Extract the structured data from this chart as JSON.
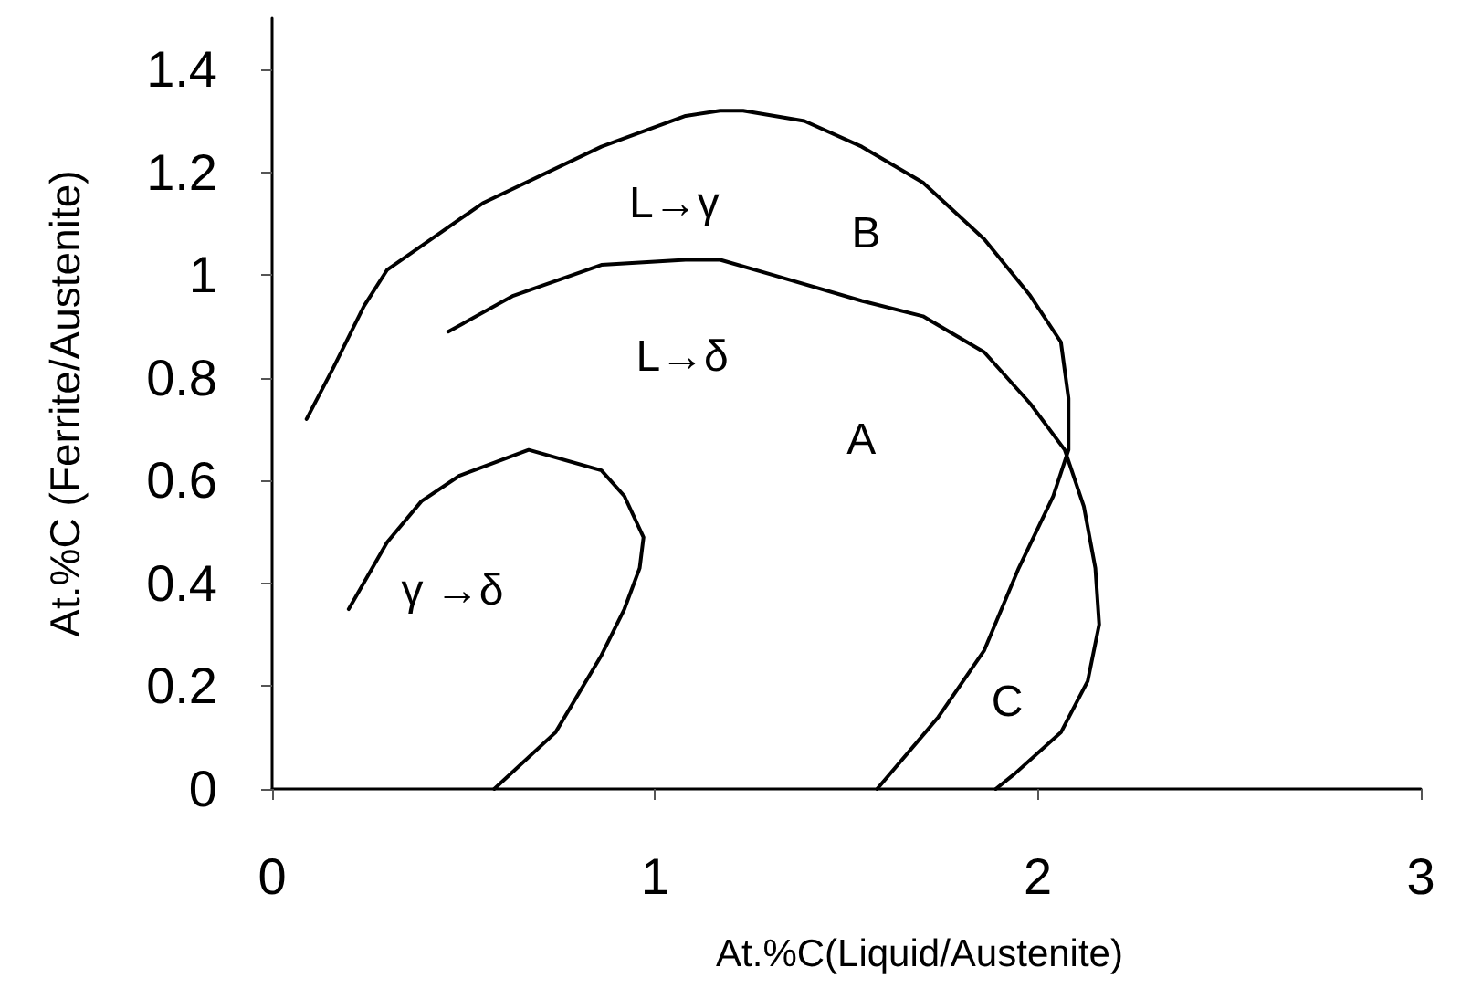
{
  "chart_data": {
    "type": "line",
    "xlabel": "At.%C(Liquid/Austenite)",
    "ylabel": "At.%C (Ferrite/Austenite)",
    "xlim": [
      0,
      3
    ],
    "xticks": [
      0,
      1,
      2,
      3
    ],
    "ylim": [
      0,
      1.5
    ],
    "yticks": [
      0,
      0.2,
      0.4,
      0.6,
      0.8,
      1,
      1.2,
      1.4
    ],
    "series": [
      {
        "color": "#000000",
        "x": [
          0.09,
          0.16,
          0.24,
          0.3,
          0.55,
          0.86,
          1.08,
          1.17,
          1.23,
          1.39,
          1.54,
          1.7,
          1.86,
          1.98,
          2.06,
          2.08,
          2.08,
          2.04,
          1.95,
          1.86,
          1.74,
          1.58
        ],
        "values": [
          0.72,
          0.82,
          0.94,
          1.01,
          1.14,
          1.25,
          1.31,
          1.32,
          1.32,
          1.3,
          1.25,
          1.18,
          1.07,
          0.96,
          0.87,
          0.76,
          0.66,
          0.57,
          0.43,
          0.27,
          0.14,
          0
        ]
      },
      {
        "color": "#000000",
        "x": [
          0.46,
          0.63,
          0.86,
          1.08,
          1.17,
          1.31,
          1.54,
          1.7,
          1.86,
          1.98,
          2.07,
          2.12,
          2.15,
          2.16,
          2.13,
          2.06,
          1.94,
          1.89
        ],
        "values": [
          0.89,
          0.96,
          1.02,
          1.03,
          1.03,
          1.0,
          0.95,
          0.92,
          0.85,
          0.75,
          0.66,
          0.55,
          0.43,
          0.32,
          0.21,
          0.11,
          0.03,
          0
        ]
      },
      {
        "color": "#000000",
        "x": [
          0.2,
          0.3,
          0.39,
          0.49,
          0.67,
          0.86,
          0.92,
          0.97,
          0.96,
          0.92,
          0.86,
          0.74,
          0.58
        ],
        "values": [
          0.35,
          0.48,
          0.56,
          0.61,
          0.66,
          0.62,
          0.57,
          0.49,
          0.43,
          0.35,
          0.26,
          0.11,
          0
        ]
      }
    ],
    "annotations": [
      "L→γ",
      "B",
      "L→δ",
      "A",
      "γ →δ",
      "C"
    ]
  }
}
